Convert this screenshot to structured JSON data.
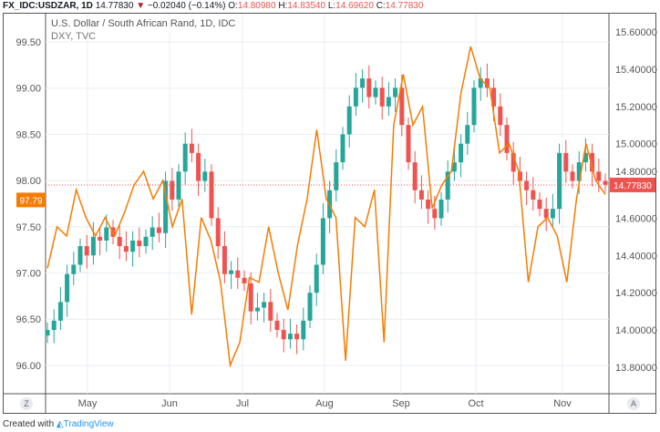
{
  "header": {
    "symbol": "FX_IDC:USDZAR, 1D",
    "last": "14.77830",
    "change": "−0.02040 (−0.14%)",
    "o_label": "O:",
    "o": "14.80980",
    "h_label": "H:",
    "h": "14.83540",
    "l_label": "L:",
    "l": "14.69620",
    "c_label": "C:",
    "c": "14.77830"
  },
  "legend": {
    "main": "U.S. Dollar / South African Rand, 1D, IDC",
    "overlay": "DXY, TVC"
  },
  "footer": {
    "prefix": "Created with",
    "brand": "TradingView"
  },
  "corners": {
    "left": "Z",
    "right": "A"
  },
  "colors": {
    "up": "#26a69a",
    "down": "#ef5350",
    "dxy": "#f57c00",
    "grid": "#e9eef3"
  },
  "chart_data": {
    "type": "line+candlestick",
    "x_ticks": [
      "May",
      "Jun",
      "Jul",
      "Aug",
      "Sep",
      "Oct",
      "Nov"
    ],
    "left_axis": {
      "ticks": [
        "99.50",
        "99.00",
        "98.50",
        "98.00",
        "97.50",
        "97.00",
        "96.50",
        "96.00"
      ],
      "range": [
        96.0,
        99.5
      ],
      "current_label": "97.79"
    },
    "right_axis": {
      "ticks": [
        "15.60000",
        "15.40000",
        "15.20000",
        "15.00000",
        "14.80000",
        "14.60000",
        "14.40000",
        "14.20000",
        "14.00000",
        "13.80000"
      ],
      "range": [
        13.8,
        15.6
      ],
      "current_label": "14.77830"
    },
    "dxy": [
      97.05,
      97.5,
      97.4,
      97.9,
      97.6,
      97.4,
      97.6,
      97.4,
      97.65,
      97.95,
      98.1,
      97.8,
      98.0,
      97.5,
      97.8,
      96.55,
      97.6,
      97.35,
      96.9,
      96.0,
      96.25,
      96.95,
      96.9,
      97.5,
      97.0,
      96.6,
      97.3,
      97.8,
      98.55,
      97.8,
      97.6,
      96.05,
      97.6,
      97.5,
      97.9,
      96.25,
      98.6,
      99.15,
      98.6,
      98.8,
      97.7,
      97.95,
      98.1,
      98.95,
      99.45,
      99.1,
      99.0,
      98.3,
      98.4,
      98.1,
      96.9,
      97.5,
      97.6,
      97.4,
      96.9,
      97.8,
      98.4,
      98.0,
      97.85
    ],
    "usdzar_close": [
      14.0,
      14.05,
      14.15,
      14.3,
      14.35,
      14.45,
      14.4,
      14.5,
      14.48,
      14.55,
      14.5,
      14.45,
      14.42,
      14.48,
      14.45,
      14.5,
      14.55,
      14.52,
      14.8,
      14.7,
      14.85,
      15.0,
      14.95,
      14.8,
      14.85,
      14.6,
      14.45,
      14.3,
      14.32,
      14.28,
      14.25,
      14.1,
      14.12,
      14.15,
      14.05,
      14.0,
      13.95,
      13.98,
      13.95,
      14.05,
      14.2,
      14.35,
      14.6,
      14.75,
      14.9,
      15.05,
      15.2,
      15.3,
      15.35,
      15.25,
      15.3,
      15.2,
      15.25,
      15.3,
      15.1,
      14.9,
      14.75,
      14.7,
      14.65,
      14.6,
      14.7,
      14.85,
      14.9,
      15.0,
      15.1,
      15.3,
      15.35,
      15.3,
      15.2,
      15.1,
      14.95,
      14.85,
      14.8,
      14.75,
      14.7,
      14.65,
      14.6,
      14.65,
      14.95,
      14.85,
      14.8,
      14.9,
      14.95,
      14.85,
      14.8,
      14.78
    ]
  }
}
